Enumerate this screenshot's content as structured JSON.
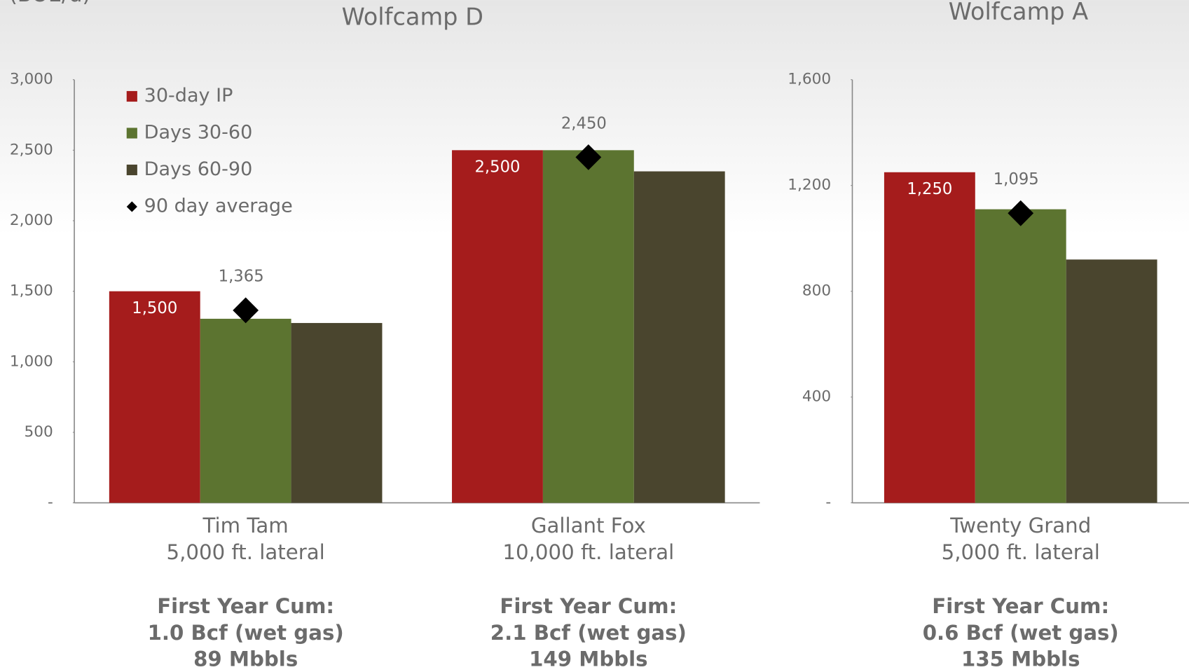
{
  "y_label": "(BOE/d)",
  "chart_data": [
    {
      "type": "bar",
      "title": "Wolfcamp D",
      "categories": [
        "Tim Tam",
        "Gallant Fox"
      ],
      "category_notes": [
        "5,000 ft. lateral",
        "10,000 ft. lateral"
      ],
      "footnotes": [
        [
          "First Year Cum:",
          "1.0 Bcf (wet gas)",
          "89 Mbbls"
        ],
        [
          "First Year Cum:",
          "2.1 Bcf (wet gas)",
          "149 Mbbls"
        ]
      ],
      "series": [
        {
          "name": "30-day IP",
          "color": "#a51c1c",
          "values": [
            1500,
            2500
          ],
          "value_labels": [
            "1,500",
            "2,500"
          ]
        },
        {
          "name": "Days 30-60",
          "color": "#5c7430",
          "values": [
            1305,
            2500
          ]
        },
        {
          "name": "Days 60-90",
          "color": "#4a452e",
          "values": [
            1275,
            2350
          ]
        },
        {
          "name": "90 day average",
          "type": "scatter",
          "marker": "diamond",
          "color": "#000000",
          "values": [
            1365,
            2450
          ],
          "value_labels": [
            "1,365",
            "2,450"
          ]
        }
      ],
      "ylim": [
        0,
        3000
      ],
      "yticks": [
        {
          "value": 0,
          "label": "-"
        },
        500,
        {
          "value": 1000,
          "label": "1,000"
        },
        {
          "value": 1500,
          "label": "1,500"
        },
        {
          "value": 2000,
          "label": "2,000"
        },
        {
          "value": 2500,
          "label": "2,500"
        },
        {
          "value": 3000,
          "label": "3,000"
        }
      ],
      "legend": "upper left"
    },
    {
      "type": "bar",
      "title": "Wolfcamp A",
      "categories": [
        "Twenty Grand"
      ],
      "category_notes": [
        "5,000 ft. lateral"
      ],
      "footnotes": [
        [
          "First Year Cum:",
          "0.6 Bcf (wet gas)",
          "135 Mbbls"
        ]
      ],
      "series": [
        {
          "name": "30-day IP",
          "color": "#a51c1c",
          "values": [
            1250
          ],
          "value_labels": [
            "1,250"
          ]
        },
        {
          "name": "Days 30-60",
          "color": "#5c7430",
          "values": [
            1110
          ]
        },
        {
          "name": "Days 60-90",
          "color": "#4a452e",
          "values": [
            920
          ]
        },
        {
          "name": "90 day average",
          "type": "scatter",
          "marker": "diamond",
          "color": "#000000",
          "values": [
            1095
          ],
          "value_labels": [
            "1,095"
          ]
        }
      ],
      "ylim": [
        0,
        1600
      ],
      "yticks": [
        {
          "value": 0,
          "label": "-"
        },
        400,
        800,
        {
          "value": 1200,
          "label": "1,200"
        },
        {
          "value": 1600,
          "label": "1,600"
        }
      ]
    }
  ]
}
